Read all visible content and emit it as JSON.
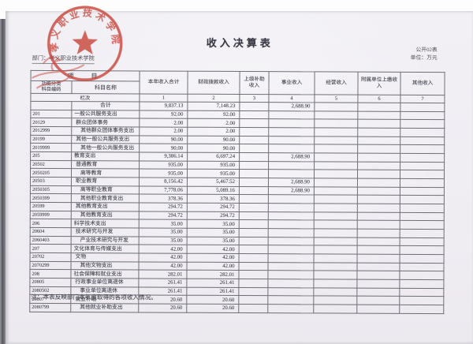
{
  "page": {
    "title": "收入决算表",
    "form_no": "公开02表",
    "unit_label": "单位：万元",
    "department": "部门：孝义职业技术学院",
    "note": "注：本表反映部门本年度取得的各项收入情况。"
  },
  "stamp": {
    "icon": "official-seal",
    "text": "孝义职业技术学院",
    "color": "#c8473c"
  },
  "table": {
    "item_header": "项　目",
    "code_header": "功能分类\n科目编码",
    "name_header": "科目名称",
    "lanci_label": "栏次",
    "columns": [
      "本年收入合计",
      "财政拨款收入",
      "上级补助收入",
      "事业收入",
      "经营收入",
      "附属单位上缴收入",
      "其他收入"
    ],
    "column_nums": [
      "1",
      "2",
      "3",
      "4",
      "5",
      "6",
      "7"
    ],
    "rows": [
      {
        "code": "",
        "name": "合计",
        "align": "center",
        "level": 0,
        "values": [
          "9,837.13",
          "7,148.23",
          "",
          "2,688.90",
          "",
          "",
          ""
        ]
      },
      {
        "code": "201",
        "name": "一般公共服务支出",
        "level": 1,
        "values": [
          "92.00",
          "92.00",
          "",
          "",
          "",
          "",
          ""
        ]
      },
      {
        "code": "20129",
        "name": "群众团体事务",
        "level": 2,
        "values": [
          "2.00",
          "2.00",
          "",
          "",
          "",
          "",
          ""
        ]
      },
      {
        "code": "2012999",
        "name": "其他群众团体事务支出",
        "level": 3,
        "values": [
          "2.00",
          "2.00",
          "",
          "",
          "",
          "",
          ""
        ]
      },
      {
        "code": "20199",
        "name": "其他一般公共服务支出",
        "level": 2,
        "values": [
          "90.00",
          "90.00",
          "",
          "",
          "",
          "",
          ""
        ]
      },
      {
        "code": "2019999",
        "name": "其他一般公共服务支出",
        "level": 3,
        "values": [
          "90.00",
          "90.00",
          "",
          "",
          "",
          "",
          ""
        ]
      },
      {
        "code": "205",
        "name": "教育支出",
        "level": 1,
        "values": [
          "9,386.14",
          "6,697.24",
          "",
          "2,688.90",
          "",
          "",
          ""
        ]
      },
      {
        "code": "20502",
        "name": "普通教育",
        "level": 2,
        "values": [
          "935.00",
          "935.00",
          "",
          "",
          "",
          "",
          ""
        ]
      },
      {
        "code": "2050205",
        "name": "高等教育",
        "level": 3,
        "values": [
          "935.00",
          "935.00",
          "",
          "",
          "",
          "",
          ""
        ]
      },
      {
        "code": "20503",
        "name": "职业教育",
        "level": 2,
        "values": [
          "8,156.42",
          "5,467.52",
          "",
          "2,688.90",
          "",
          "",
          ""
        ]
      },
      {
        "code": "2050305",
        "name": "高等职业教育",
        "level": 3,
        "values": [
          "7,778.06",
          "5,089.16",
          "",
          "2,688.90",
          "",
          "",
          ""
        ]
      },
      {
        "code": "2050399",
        "name": "其他职业教育支出",
        "level": 3,
        "values": [
          "378.36",
          "378.36",
          "",
          "",
          "",
          "",
          ""
        ]
      },
      {
        "code": "20599",
        "name": "其他教育支出",
        "level": 2,
        "values": [
          "294.72",
          "294.72",
          "",
          "",
          "",
          "",
          ""
        ]
      },
      {
        "code": "2059999",
        "name": "其他教育支出",
        "level": 3,
        "values": [
          "294.72",
          "294.72",
          "",
          "",
          "",
          "",
          ""
        ]
      },
      {
        "code": "206",
        "name": "科学技术支出",
        "level": 1,
        "values": [
          "35.00",
          "35.00",
          "",
          "",
          "",
          "",
          ""
        ]
      },
      {
        "code": "20604",
        "name": "技术研究与开发",
        "level": 2,
        "values": [
          "35.00",
          "35.00",
          "",
          "",
          "",
          "",
          ""
        ]
      },
      {
        "code": "2060403",
        "name": "产业技术研究与开发",
        "level": 3,
        "values": [
          "35.00",
          "35.00",
          "",
          "",
          "",
          "",
          ""
        ]
      },
      {
        "code": "207",
        "name": "文化体育与传媒支出",
        "level": 1,
        "values": [
          "42.00",
          "42.00",
          "",
          "",
          "",
          "",
          ""
        ]
      },
      {
        "code": "20702",
        "name": "文物",
        "level": 2,
        "values": [
          "42.00",
          "42.00",
          "",
          "",
          "",
          "",
          ""
        ]
      },
      {
        "code": "2070299",
        "name": "其他文物支出",
        "level": 3,
        "values": [
          "42.00",
          "42.00",
          "",
          "",
          "",
          "",
          ""
        ]
      },
      {
        "code": "208",
        "name": "社会保障和就业支出",
        "level": 1,
        "values": [
          "282.01",
          "282.01",
          "",
          "",
          "",
          "",
          ""
        ]
      },
      {
        "code": "20805",
        "name": "行政事业单位离退休",
        "level": 2,
        "values": [
          "261.41",
          "261.41",
          "",
          "",
          "",
          "",
          ""
        ]
      },
      {
        "code": "2080502",
        "name": "事业单位离退休",
        "level": 3,
        "values": [
          "261.41",
          "261.41",
          "",
          "",
          "",
          "",
          ""
        ]
      },
      {
        "code": "20807",
        "name": "就业补助",
        "level": 2,
        "values": [
          "20.60",
          "20.60",
          "",
          "",
          "",
          "",
          ""
        ]
      },
      {
        "code": "2080799",
        "name": "其他就业补助支出",
        "level": 3,
        "values": [
          "20.60",
          "20.60",
          "",
          "",
          "",
          "",
          ""
        ]
      }
    ]
  }
}
